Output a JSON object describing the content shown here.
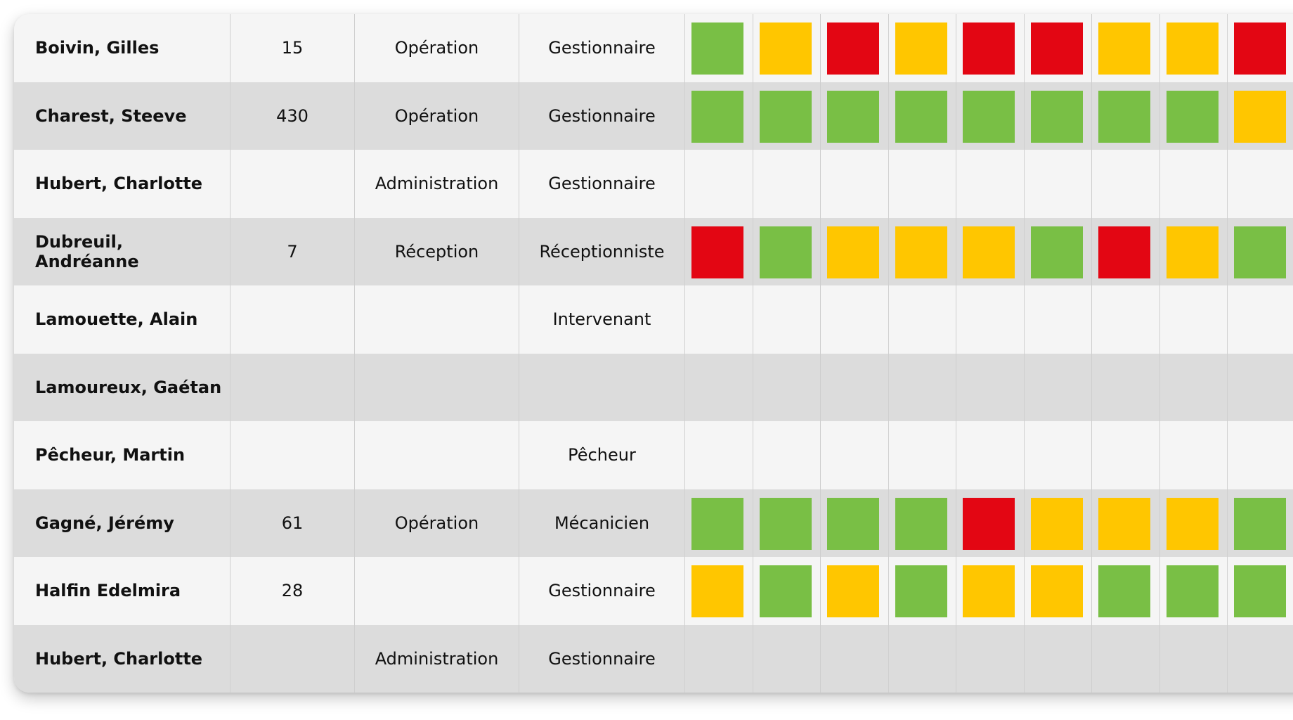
{
  "colors": {
    "green": "#79bf45",
    "yellow": "#ffc600",
    "red": "#e30613"
  },
  "rows": [
    {
      "name": "Boivin, Gilles",
      "number": "15",
      "department": "Opération",
      "role": "Gestionnaire",
      "statuses": [
        "green",
        "yellow",
        "red",
        "yellow",
        "red",
        "red",
        "yellow",
        "yellow",
        "red"
      ]
    },
    {
      "name": "Charest, Steeve",
      "number": "430",
      "department": "Opération",
      "role": "Gestionnaire",
      "statuses": [
        "green",
        "green",
        "green",
        "green",
        "green",
        "green",
        "green",
        "green",
        "yellow"
      ]
    },
    {
      "name": "Hubert, Charlotte",
      "number": "",
      "department": "Administration",
      "role": "Gestionnaire",
      "statuses": []
    },
    {
      "name": "Dubreuil, Andréanne",
      "number": "7",
      "department": "Réception",
      "role": "Réceptionniste",
      "statuses": [
        "red",
        "green",
        "yellow",
        "yellow",
        "yellow",
        "green",
        "red",
        "yellow",
        "green"
      ]
    },
    {
      "name": "Lamouette, Alain",
      "number": "",
      "department": "",
      "role": "Intervenant",
      "statuses": []
    },
    {
      "name": "Lamoureux, Gaétan",
      "number": "",
      "department": "",
      "role": "",
      "statuses": []
    },
    {
      "name": "Pêcheur, Martin",
      "number": "",
      "department": "",
      "role": "Pêcheur",
      "statuses": []
    },
    {
      "name": "Gagné, Jérémy",
      "number": "61",
      "department": "Opération",
      "role": "Mécanicien",
      "statuses": [
        "green",
        "green",
        "green",
        "green",
        "red",
        "yellow",
        "yellow",
        "yellow",
        "green"
      ]
    },
    {
      "name": "Halfin Edelmira",
      "number": "28",
      "department": "",
      "role": "Gestionnaire",
      "statuses": [
        "yellow",
        "green",
        "yellow",
        "green",
        "yellow",
        "yellow",
        "green",
        "green",
        "green"
      ]
    },
    {
      "name": "Hubert, Charlotte",
      "number": "",
      "department": "Administration",
      "role": "Gestionnaire",
      "statuses": []
    }
  ]
}
